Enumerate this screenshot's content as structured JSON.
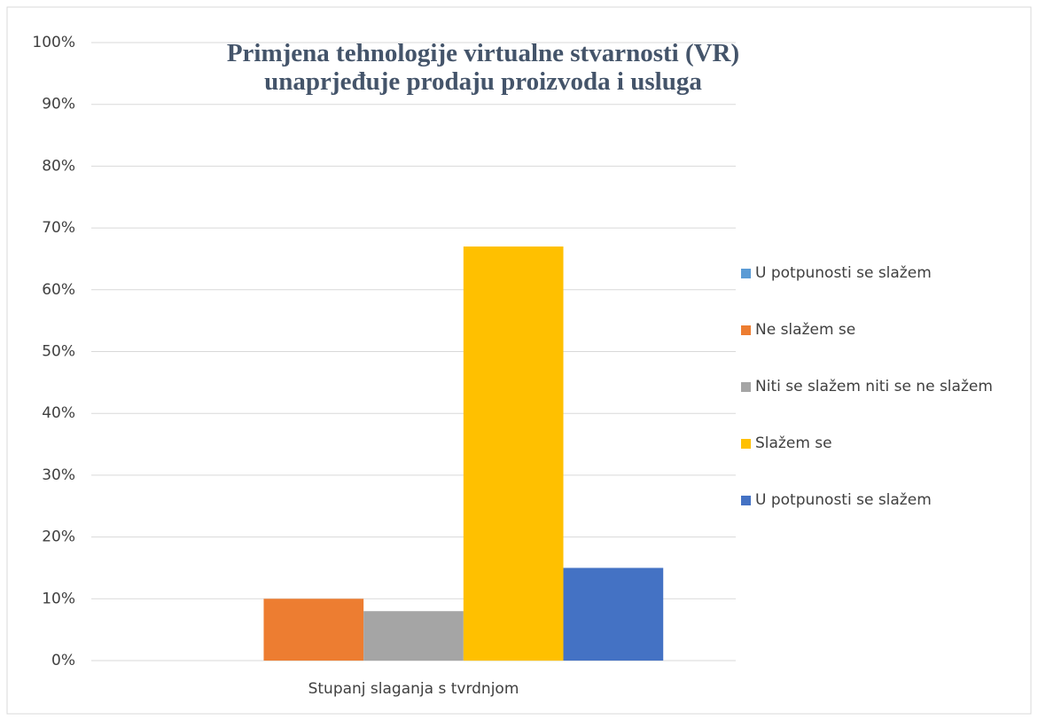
{
  "chart_data": {
    "type": "bar",
    "title": "Primjena tehnologije virtualne stvarnosti (VR) unaprjeđuje prodaju proizvoda i usluga",
    "categories": [
      "Stupanj slaganja s tvrdnjom"
    ],
    "series": [
      {
        "name": "U potpunosti se slažem",
        "color": "#5b9bd5",
        "values": [
          0
        ]
      },
      {
        "name": "Ne slažem se",
        "color": "#ed7d31",
        "values": [
          10
        ]
      },
      {
        "name": "Niti se slažem niti se ne slažem",
        "color": "#a5a5a5",
        "values": [
          8
        ]
      },
      {
        "name": "Slažem se",
        "color": "#ffc000",
        "values": [
          67
        ]
      },
      {
        "name": "U potpunosti se slažem",
        "color": "#4472c4",
        "values": [
          15
        ]
      }
    ],
    "ylim": [
      0,
      100
    ],
    "yticks": [
      {
        "value": 0,
        "label": "0%"
      },
      {
        "value": 10,
        "label": "10%"
      },
      {
        "value": 20,
        "label": "20%"
      },
      {
        "value": 30,
        "label": "30%"
      },
      {
        "value": 40,
        "label": "40%"
      },
      {
        "value": 50,
        "label": "50%"
      },
      {
        "value": 60,
        "label": "60%"
      },
      {
        "value": 70,
        "label": "70%"
      },
      {
        "value": 80,
        "label": "80%"
      },
      {
        "value": 90,
        "label": "90%"
      },
      {
        "value": 100,
        "label": "100%"
      }
    ],
    "grid": true,
    "legend": "right"
  }
}
